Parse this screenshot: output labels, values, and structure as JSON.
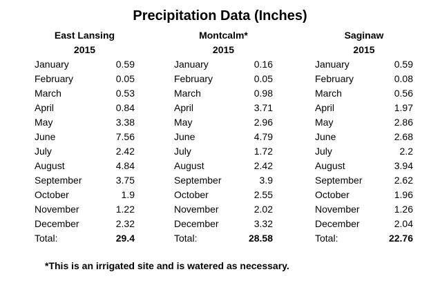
{
  "title": "Precipitation Data (Inches)",
  "footnote": "*This is an irrigated site and is watered as necessary.",
  "total_label": "Total:",
  "colors": {
    "background": "#ffffff",
    "text": "#000000"
  },
  "sites": [
    {
      "name": "East Lansing",
      "year": "2015",
      "rows": [
        {
          "month": "January",
          "value": "0.59"
        },
        {
          "month": "February",
          "value": "0.05"
        },
        {
          "month": "March",
          "value": "0.53"
        },
        {
          "month": "April",
          "value": "0.84"
        },
        {
          "month": "May",
          "value": "3.38"
        },
        {
          "month": "June",
          "value": "7.56"
        },
        {
          "month": "July",
          "value": "2.42"
        },
        {
          "month": "August",
          "value": "4.84"
        },
        {
          "month": "September",
          "value": "3.75"
        },
        {
          "month": "October",
          "value": "1.9"
        },
        {
          "month": "November",
          "value": "1.22"
        },
        {
          "month": "December",
          "value": "2.32"
        }
      ],
      "total": "29.4"
    },
    {
      "name": "Montcalm*",
      "year": "2015",
      "rows": [
        {
          "month": "January",
          "value": "0.16"
        },
        {
          "month": "February",
          "value": "0.05"
        },
        {
          "month": "March",
          "value": "0.98"
        },
        {
          "month": "April",
          "value": "3.71"
        },
        {
          "month": "May",
          "value": "2.96"
        },
        {
          "month": "June",
          "value": "4.79"
        },
        {
          "month": "July",
          "value": "1.72"
        },
        {
          "month": "August",
          "value": "2.42"
        },
        {
          "month": "September",
          "value": "3.9"
        },
        {
          "month": "October",
          "value": "2.55"
        },
        {
          "month": "November",
          "value": "2.02"
        },
        {
          "month": "December",
          "value": "3.32"
        }
      ],
      "total": "28.58"
    },
    {
      "name": "Saginaw",
      "year": "2015",
      "rows": [
        {
          "month": "January",
          "value": "0.59"
        },
        {
          "month": "February",
          "value": "0.08"
        },
        {
          "month": "March",
          "value": "0.56"
        },
        {
          "month": "April",
          "value": "1.97"
        },
        {
          "month": "May",
          "value": "2.86"
        },
        {
          "month": "June",
          "value": "2.68"
        },
        {
          "month": "July",
          "value": "2.2"
        },
        {
          "month": "August",
          "value": "3.94"
        },
        {
          "month": "September",
          "value": "2.62"
        },
        {
          "month": "October",
          "value": "1.96"
        },
        {
          "month": "November",
          "value": "1.26"
        },
        {
          "month": "December",
          "value": "2.04"
        }
      ],
      "total": "22.76"
    }
  ],
  "chart_data": {
    "type": "table",
    "title": "Precipitation Data (Inches)",
    "categories": [
      "January",
      "February",
      "March",
      "April",
      "May",
      "June",
      "July",
      "August",
      "September",
      "October",
      "November",
      "December"
    ],
    "series": [
      {
        "name": "East Lansing 2015",
        "values": [
          0.59,
          0.05,
          0.53,
          0.84,
          3.38,
          7.56,
          2.42,
          4.84,
          3.75,
          1.9,
          1.22,
          2.32
        ],
        "total": 29.4
      },
      {
        "name": "Montcalm* 2015",
        "values": [
          0.16,
          0.05,
          0.98,
          3.71,
          2.96,
          4.79,
          1.72,
          2.42,
          3.9,
          2.55,
          2.02,
          3.32
        ],
        "total": 28.58
      },
      {
        "name": "Saginaw 2015",
        "values": [
          0.59,
          0.08,
          0.56,
          1.97,
          2.86,
          2.68,
          2.2,
          3.94,
          2.62,
          1.96,
          1.26,
          2.04
        ],
        "total": 22.76
      }
    ],
    "footnote": "*This is an irrigated site and is watered as necessary."
  }
}
